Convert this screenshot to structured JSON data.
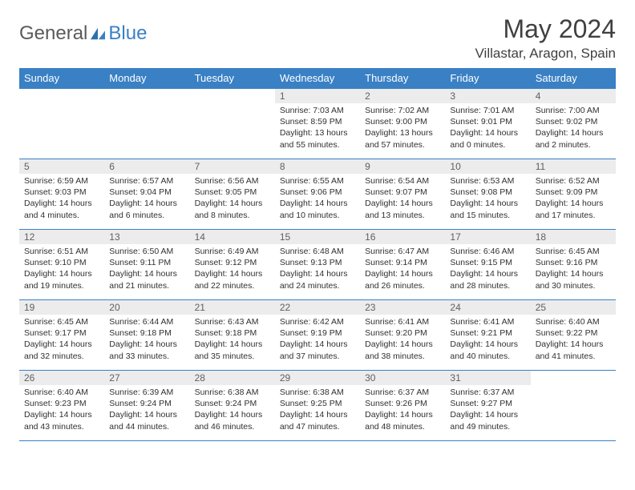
{
  "logo": {
    "text1": "General",
    "text2": "Blue"
  },
  "title": "May 2024",
  "location": "Villastar, Aragon, Spain",
  "colors": {
    "header_bg": "#3a80c4",
    "header_text": "#ffffff",
    "daynum_bg": "#ececec",
    "border": "#3a80c4",
    "logo_gray": "#5a5a5a",
    "logo_blue": "#3a80c4"
  },
  "weekdays": [
    "Sunday",
    "Monday",
    "Tuesday",
    "Wednesday",
    "Thursday",
    "Friday",
    "Saturday"
  ],
  "weeks": [
    [
      {
        "n": "",
        "lines": []
      },
      {
        "n": "",
        "lines": []
      },
      {
        "n": "",
        "lines": []
      },
      {
        "n": "1",
        "lines": [
          "Sunrise: 7:03 AM",
          "Sunset: 8:59 PM",
          "Daylight: 13 hours",
          "and 55 minutes."
        ]
      },
      {
        "n": "2",
        "lines": [
          "Sunrise: 7:02 AM",
          "Sunset: 9:00 PM",
          "Daylight: 13 hours",
          "and 57 minutes."
        ]
      },
      {
        "n": "3",
        "lines": [
          "Sunrise: 7:01 AM",
          "Sunset: 9:01 PM",
          "Daylight: 14 hours",
          "and 0 minutes."
        ]
      },
      {
        "n": "4",
        "lines": [
          "Sunrise: 7:00 AM",
          "Sunset: 9:02 PM",
          "Daylight: 14 hours",
          "and 2 minutes."
        ]
      }
    ],
    [
      {
        "n": "5",
        "lines": [
          "Sunrise: 6:59 AM",
          "Sunset: 9:03 PM",
          "Daylight: 14 hours",
          "and 4 minutes."
        ]
      },
      {
        "n": "6",
        "lines": [
          "Sunrise: 6:57 AM",
          "Sunset: 9:04 PM",
          "Daylight: 14 hours",
          "and 6 minutes."
        ]
      },
      {
        "n": "7",
        "lines": [
          "Sunrise: 6:56 AM",
          "Sunset: 9:05 PM",
          "Daylight: 14 hours",
          "and 8 minutes."
        ]
      },
      {
        "n": "8",
        "lines": [
          "Sunrise: 6:55 AM",
          "Sunset: 9:06 PM",
          "Daylight: 14 hours",
          "and 10 minutes."
        ]
      },
      {
        "n": "9",
        "lines": [
          "Sunrise: 6:54 AM",
          "Sunset: 9:07 PM",
          "Daylight: 14 hours",
          "and 13 minutes."
        ]
      },
      {
        "n": "10",
        "lines": [
          "Sunrise: 6:53 AM",
          "Sunset: 9:08 PM",
          "Daylight: 14 hours",
          "and 15 minutes."
        ]
      },
      {
        "n": "11",
        "lines": [
          "Sunrise: 6:52 AM",
          "Sunset: 9:09 PM",
          "Daylight: 14 hours",
          "and 17 minutes."
        ]
      }
    ],
    [
      {
        "n": "12",
        "lines": [
          "Sunrise: 6:51 AM",
          "Sunset: 9:10 PM",
          "Daylight: 14 hours",
          "and 19 minutes."
        ]
      },
      {
        "n": "13",
        "lines": [
          "Sunrise: 6:50 AM",
          "Sunset: 9:11 PM",
          "Daylight: 14 hours",
          "and 21 minutes."
        ]
      },
      {
        "n": "14",
        "lines": [
          "Sunrise: 6:49 AM",
          "Sunset: 9:12 PM",
          "Daylight: 14 hours",
          "and 22 minutes."
        ]
      },
      {
        "n": "15",
        "lines": [
          "Sunrise: 6:48 AM",
          "Sunset: 9:13 PM",
          "Daylight: 14 hours",
          "and 24 minutes."
        ]
      },
      {
        "n": "16",
        "lines": [
          "Sunrise: 6:47 AM",
          "Sunset: 9:14 PM",
          "Daylight: 14 hours",
          "and 26 minutes."
        ]
      },
      {
        "n": "17",
        "lines": [
          "Sunrise: 6:46 AM",
          "Sunset: 9:15 PM",
          "Daylight: 14 hours",
          "and 28 minutes."
        ]
      },
      {
        "n": "18",
        "lines": [
          "Sunrise: 6:45 AM",
          "Sunset: 9:16 PM",
          "Daylight: 14 hours",
          "and 30 minutes."
        ]
      }
    ],
    [
      {
        "n": "19",
        "lines": [
          "Sunrise: 6:45 AM",
          "Sunset: 9:17 PM",
          "Daylight: 14 hours",
          "and 32 minutes."
        ]
      },
      {
        "n": "20",
        "lines": [
          "Sunrise: 6:44 AM",
          "Sunset: 9:18 PM",
          "Daylight: 14 hours",
          "and 33 minutes."
        ]
      },
      {
        "n": "21",
        "lines": [
          "Sunrise: 6:43 AM",
          "Sunset: 9:18 PM",
          "Daylight: 14 hours",
          "and 35 minutes."
        ]
      },
      {
        "n": "22",
        "lines": [
          "Sunrise: 6:42 AM",
          "Sunset: 9:19 PM",
          "Daylight: 14 hours",
          "and 37 minutes."
        ]
      },
      {
        "n": "23",
        "lines": [
          "Sunrise: 6:41 AM",
          "Sunset: 9:20 PM",
          "Daylight: 14 hours",
          "and 38 minutes."
        ]
      },
      {
        "n": "24",
        "lines": [
          "Sunrise: 6:41 AM",
          "Sunset: 9:21 PM",
          "Daylight: 14 hours",
          "and 40 minutes."
        ]
      },
      {
        "n": "25",
        "lines": [
          "Sunrise: 6:40 AM",
          "Sunset: 9:22 PM",
          "Daylight: 14 hours",
          "and 41 minutes."
        ]
      }
    ],
    [
      {
        "n": "26",
        "lines": [
          "Sunrise: 6:40 AM",
          "Sunset: 9:23 PM",
          "Daylight: 14 hours",
          "and 43 minutes."
        ]
      },
      {
        "n": "27",
        "lines": [
          "Sunrise: 6:39 AM",
          "Sunset: 9:24 PM",
          "Daylight: 14 hours",
          "and 44 minutes."
        ]
      },
      {
        "n": "28",
        "lines": [
          "Sunrise: 6:38 AM",
          "Sunset: 9:24 PM",
          "Daylight: 14 hours",
          "and 46 minutes."
        ]
      },
      {
        "n": "29",
        "lines": [
          "Sunrise: 6:38 AM",
          "Sunset: 9:25 PM",
          "Daylight: 14 hours",
          "and 47 minutes."
        ]
      },
      {
        "n": "30",
        "lines": [
          "Sunrise: 6:37 AM",
          "Sunset: 9:26 PM",
          "Daylight: 14 hours",
          "and 48 minutes."
        ]
      },
      {
        "n": "31",
        "lines": [
          "Sunrise: 6:37 AM",
          "Sunset: 9:27 PM",
          "Daylight: 14 hours",
          "and 49 minutes."
        ]
      },
      {
        "n": "",
        "lines": []
      }
    ]
  ]
}
